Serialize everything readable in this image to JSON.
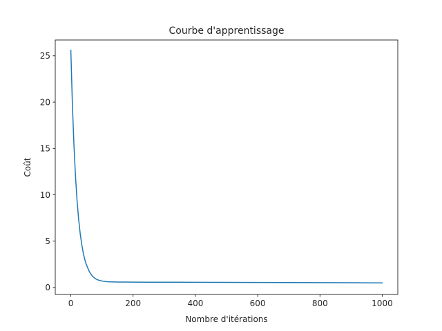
{
  "chart_data": {
    "type": "line",
    "title": "Courbe d'apprentissage",
    "xlabel": "Nombre d'itérations",
    "ylabel": "Coût",
    "xlim": [
      -50,
      1050
    ],
    "ylim": [
      -0.75,
      26.7
    ],
    "xticks": [
      0,
      200,
      400,
      600,
      800,
      1000
    ],
    "xtick_labels": [
      "0",
      "200",
      "400",
      "600",
      "800",
      "1000"
    ],
    "yticks": [
      0,
      5,
      10,
      15,
      20,
      25
    ],
    "ytick_labels": [
      "0",
      "5",
      "10",
      "15",
      "20",
      "25"
    ],
    "grid": false,
    "legend": false,
    "series": [
      {
        "color": "#1f77b4",
        "x": [
          0,
          5,
          10,
          15,
          20,
          25,
          30,
          35,
          40,
          45,
          50,
          60,
          70,
          80,
          90,
          100,
          110,
          120,
          130,
          140,
          150,
          175,
          200,
          250,
          300,
          400,
          500,
          600,
          700,
          800,
          900,
          1000
        ],
        "y": [
          25.6,
          19.8,
          15.4,
          12.0,
          9.4,
          7.4,
          5.85,
          4.65,
          3.7,
          3.0,
          2.45,
          1.67,
          1.2,
          0.93,
          0.78,
          0.7,
          0.65,
          0.62,
          0.61,
          0.6,
          0.59,
          0.585,
          0.58,
          0.575,
          0.57,
          0.56,
          0.55,
          0.54,
          0.53,
          0.52,
          0.51,
          0.5
        ]
      }
    ]
  }
}
